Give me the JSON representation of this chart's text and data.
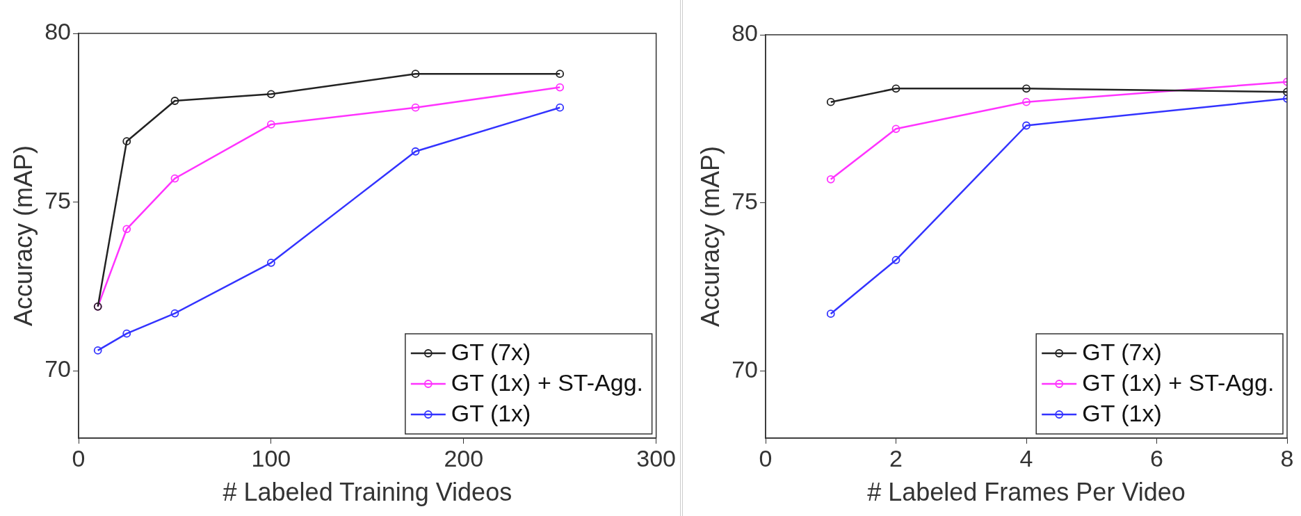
{
  "chart_data": [
    {
      "type": "line",
      "xlabel": "# Labeled Training Videos",
      "ylabel": "Accuracy (mAP)",
      "x": [
        10,
        25,
        50,
        100,
        175,
        250
      ],
      "xlim": [
        0,
        300
      ],
      "xticks": [
        0,
        100,
        200,
        300
      ],
      "ylim": [
        68,
        80
      ],
      "yticks": [
        70,
        75,
        80
      ],
      "grid": false,
      "legend": "bottom right",
      "marker": "circle",
      "line_style": "solid",
      "series": [
        {
          "name": "GT (7x)",
          "color": "#222222",
          "values": [
            71.9,
            76.8,
            78.0,
            78.2,
            78.8,
            78.8
          ]
        },
        {
          "name": "GT (1x) + ST-Agg.",
          "color": "#ff33ff",
          "values": [
            71.9,
            74.2,
            75.7,
            77.3,
            77.8,
            78.4
          ]
        },
        {
          "name": "GT (1x)",
          "color": "#3333ff",
          "values": [
            70.6,
            71.1,
            71.7,
            73.2,
            76.5,
            77.8
          ]
        }
      ]
    },
    {
      "type": "line",
      "xlabel": "# Labeled Frames Per Video",
      "ylabel": "Accuracy (mAP)",
      "x": [
        1,
        2,
        4,
        8
      ],
      "xlim": [
        0,
        8
      ],
      "xticks": [
        0,
        2,
        4,
        6,
        8
      ],
      "ylim": [
        68,
        80
      ],
      "yticks": [
        70,
        75,
        80
      ],
      "grid": false,
      "legend": "bottom right",
      "marker": "circle",
      "line_style": "solid",
      "series": [
        {
          "name": "GT (7x)",
          "color": "#222222",
          "values": [
            78.0,
            78.4,
            78.4,
            78.3
          ]
        },
        {
          "name": "GT (1x) + ST-Agg.",
          "color": "#ff33ff",
          "values": [
            75.7,
            77.2,
            78.0,
            78.6
          ]
        },
        {
          "name": "GT (1x)",
          "color": "#3333ff",
          "values": [
            71.7,
            73.3,
            77.3,
            78.1
          ]
        }
      ]
    }
  ]
}
